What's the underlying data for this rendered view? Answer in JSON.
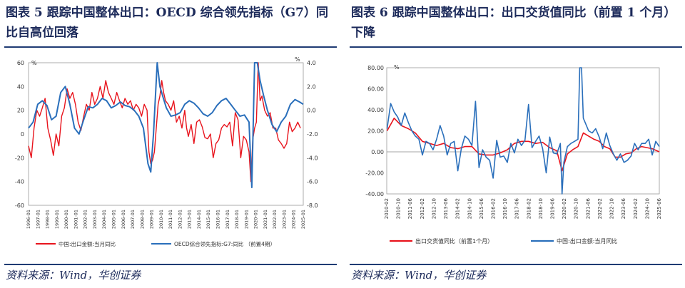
{
  "left": {
    "title": "图表 5   跟踪中国整体出口：OECD 综合领先指标（G7）同比自高位回落",
    "source": "资料来源：Wind，华创证券",
    "chart_data": {
      "type": "line",
      "y_left": {
        "unit": "%",
        "range": [
          -60,
          60
        ],
        "ticks": [
          "60",
          "40",
          "20",
          "0",
          "-20",
          "-40",
          "-60"
        ]
      },
      "y_right": {
        "unit": "%",
        "range": [
          -8.0,
          4.0
        ],
        "ticks": [
          "4.0",
          "2.0",
          "0.0",
          "-2.0",
          "-4.0",
          "-6.0",
          "-8.0"
        ]
      },
      "x_ticks": [
        "1996-01",
        "1997-01",
        "1998-01",
        "1999-01",
        "2000-01",
        "2001-01",
        "2002-01",
        "2003-01",
        "2004-01",
        "2005-01",
        "2006-01",
        "2007-01",
        "2008-01",
        "2009-01",
        "2010-01",
        "2011-01",
        "2012-01",
        "2013-01",
        "2014-01",
        "2015-01",
        "2016-01",
        "2017-01",
        "2018-01",
        "2019-01",
        "2020-01",
        "2021-01",
        "2022-01",
        "2023-01",
        "2024-01",
        "2025-01"
      ],
      "x_range": [
        1996.0,
        2025.9
      ],
      "series": [
        {
          "name": "中国:出口金额:当月同比",
          "axis": "left",
          "color": "#e8141d",
          "x": [
            1996.0,
            1996.3,
            1996.6,
            1996.9,
            1997.2,
            1997.5,
            1997.8,
            1998.1,
            1998.4,
            1998.7,
            1999.0,
            1999.3,
            1999.6,
            1999.9,
            2000.2,
            2000.5,
            2000.8,
            2001.1,
            2001.4,
            2001.7,
            2002.0,
            2002.3,
            2002.6,
            2002.9,
            2003.2,
            2003.5,
            2003.8,
            2004.1,
            2004.4,
            2004.7,
            2005.0,
            2005.3,
            2005.6,
            2005.9,
            2006.2,
            2006.5,
            2006.8,
            2007.1,
            2007.4,
            2007.7,
            2008.0,
            2008.3,
            2008.6,
            2008.9,
            2009.1,
            2009.3,
            2009.5,
            2009.7,
            2009.9,
            2010.1,
            2010.3,
            2010.5,
            2010.7,
            2010.9,
            2011.2,
            2011.5,
            2011.8,
            2012.1,
            2012.4,
            2012.7,
            2013.0,
            2013.2,
            2013.4,
            2013.7,
            2014.0,
            2014.3,
            2014.6,
            2014.9,
            2015.2,
            2015.5,
            2015.8,
            2016.1,
            2016.4,
            2016.7,
            2017.0,
            2017.3,
            2017.6,
            2017.9,
            2018.2,
            2018.5,
            2018.8,
            2019.1,
            2019.4,
            2019.7,
            2020.0,
            2020.2,
            2020.4,
            2020.6,
            2020.8,
            2021.0,
            2021.2,
            2021.4,
            2021.7,
            2022.0,
            2022.3,
            2022.6,
            2022.9,
            2023.2,
            2023.5,
            2023.8,
            2024.1,
            2024.4,
            2024.7,
            2025.0,
            2025.3,
            2025.6
          ],
          "y": [
            -10,
            -20,
            5,
            20,
            15,
            22,
            30,
            5,
            -5,
            -18,
            0,
            -10,
            15,
            22,
            38,
            30,
            35,
            25,
            10,
            3,
            15,
            25,
            20,
            35,
            25,
            30,
            40,
            30,
            45,
            35,
            30,
            25,
            35,
            28,
            22,
            30,
            25,
            28,
            20,
            25,
            22,
            15,
            25,
            20,
            -15,
            -25,
            -22,
            -15,
            5,
            25,
            32,
            45,
            35,
            28,
            25,
            20,
            28,
            10,
            15,
            5,
            20,
            5,
            -2,
            8,
            -8,
            10,
            12,
            6,
            -3,
            -4,
            0,
            -20,
            -8,
            -5,
            5,
            8,
            6,
            10,
            -10,
            18,
            12,
            -20,
            -2,
            -5,
            -15,
            -40,
            -5,
            5,
            10,
            60,
            28,
            32,
            20,
            15,
            18,
            5,
            5,
            -5,
            -8,
            -12,
            -8,
            10,
            2,
            5,
            10,
            5
          ],
          "legend_label": "中国:出口金额:当月同比"
        },
        {
          "name": "OECD综合领先指标:G7:同比（前置4期）",
          "axis": "right",
          "color": "#2a6fbb",
          "x": [
            1996.0,
            1996.5,
            1997.0,
            1997.5,
            1998.0,
            1998.5,
            1999.0,
            1999.5,
            2000.0,
            2000.5,
            2001.0,
            2001.5,
            2002.0,
            2002.5,
            2003.0,
            2003.5,
            2004.0,
            2004.5,
            2005.0,
            2005.5,
            2006.0,
            2006.5,
            2007.0,
            2007.5,
            2008.0,
            2008.5,
            2009.0,
            2009.3,
            2009.6,
            2010.0,
            2010.3,
            2010.6,
            2011.0,
            2011.5,
            2012.0,
            2012.5,
            2013.0,
            2013.5,
            2014.0,
            2014.5,
            2015.0,
            2015.5,
            2016.0,
            2016.5,
            2017.0,
            2017.5,
            2018.0,
            2018.5,
            2019.0,
            2019.5,
            2020.0,
            2020.3,
            2020.6,
            2020.9,
            2021.2,
            2021.6,
            2022.0,
            2022.5,
            2023.0,
            2023.5,
            2024.0,
            2024.5,
            2025.0,
            2025.5,
            2025.9
          ],
          "y": [
            -1.5,
            -1.0,
            0.5,
            0.8,
            0.4,
            -0.8,
            -0.5,
            1.5,
            2.0,
            0.5,
            -1.5,
            -2.0,
            -0.8,
            0.3,
            0.2,
            0.5,
            1.0,
            0.8,
            0.2,
            0.4,
            0.7,
            0.4,
            0.3,
            0.0,
            -0.5,
            -1.5,
            -4.5,
            -5.2,
            -2.0,
            4.0,
            2.0,
            1.2,
            0.2,
            -0.5,
            -0.4,
            -0.2,
            0.5,
            0.8,
            0.6,
            0.2,
            -0.3,
            -0.5,
            -0.2,
            0.4,
            0.8,
            1.0,
            0.5,
            0.0,
            -0.5,
            -0.4,
            -1.0,
            -6.5,
            4.0,
            4.0,
            2.5,
            1.2,
            0.0,
            -1.2,
            -1.8,
            -1.0,
            -0.5,
            0.5,
            0.9,
            0.7,
            0.5
          ],
          "legend_label": "OECD综合领先指标:G7:同比 （前置4期）"
        }
      ]
    }
  },
  "right": {
    "title": "图表 6   跟踪中国整体出口：出口交货值同比（前置 1 个月）下降",
    "source": "资料来源：Wind，华创证券",
    "chart_data": {
      "type": "line",
      "y_left": {
        "unit": "%",
        "range": [
          -40,
          80
        ],
        "ticks": [
          "80.00",
          "60.00",
          "40.00",
          "20.00",
          "0.00",
          "-20.00",
          "-40.00"
        ]
      },
      "x_ticks": [
        "2010-02",
        "2010-10",
        "2011-06",
        "2012-02",
        "2012-10",
        "2013-06",
        "2014-02",
        "2014-10",
        "2015-06",
        "2016-02",
        "2016-10",
        "2017-06",
        "2018-02",
        "2018-10",
        "2019-06",
        "2020-02",
        "2020-10",
        "2021-06",
        "2022-02",
        "2022-10",
        "2023-06",
        "2024-02",
        "2024-10",
        "2025-06"
      ],
      "x_range": [
        2010.08,
        2025.5
      ],
      "series": [
        {
          "name": "出口交货值同比（前置1个月）",
          "color": "#e8141d",
          "x": [
            2010.1,
            2010.5,
            2010.9,
            2011.3,
            2011.7,
            2012.1,
            2012.5,
            2012.9,
            2013.3,
            2013.7,
            2014.1,
            2014.5,
            2014.9,
            2015.3,
            2015.7,
            2016.1,
            2016.5,
            2016.9,
            2017.3,
            2017.7,
            2018.1,
            2018.5,
            2018.9,
            2019.3,
            2019.7,
            2020.0,
            2020.3,
            2020.6,
            2020.9,
            2021.2,
            2021.5,
            2021.8,
            2022.1,
            2022.4,
            2022.7,
            2023.0,
            2023.3,
            2023.6,
            2023.9,
            2024.2,
            2024.5,
            2024.8,
            2025.1,
            2025.5
          ],
          "y": [
            20,
            32,
            25,
            22,
            18,
            10,
            8,
            6,
            8,
            4,
            3,
            5,
            5,
            -2,
            -3,
            -3,
            -1,
            2,
            8,
            10,
            10,
            8,
            9,
            4,
            1,
            -18,
            -2,
            2,
            5,
            18,
            15,
            12,
            10,
            5,
            3,
            -5,
            -5,
            -2,
            -1,
            3,
            5,
            4,
            3,
            0
          ]
        },
        {
          "name": "中国:出口金额:当月同比",
          "color": "#2a6fbb",
          "x": [
            2010.1,
            2010.3,
            2010.5,
            2010.7,
            2010.9,
            2011.1,
            2011.3,
            2011.5,
            2011.7,
            2011.9,
            2012.1,
            2012.3,
            2012.5,
            2012.7,
            2012.9,
            2013.1,
            2013.3,
            2013.5,
            2013.7,
            2013.9,
            2014.1,
            2014.3,
            2014.5,
            2014.7,
            2014.9,
            2015.1,
            2015.3,
            2015.5,
            2015.7,
            2015.9,
            2016.1,
            2016.3,
            2016.5,
            2016.7,
            2016.9,
            2017.1,
            2017.3,
            2017.5,
            2017.7,
            2017.9,
            2018.1,
            2018.3,
            2018.5,
            2018.7,
            2018.9,
            2019.1,
            2019.3,
            2019.5,
            2019.7,
            2019.9,
            2020.0,
            2020.1,
            2020.3,
            2020.5,
            2020.7,
            2020.9,
            2021.0,
            2021.1,
            2021.2,
            2021.3,
            2021.5,
            2021.7,
            2021.9,
            2022.1,
            2022.3,
            2022.5,
            2022.7,
            2022.9,
            2023.1,
            2023.3,
            2023.5,
            2023.7,
            2023.9,
            2024.1,
            2024.3,
            2024.5,
            2024.7,
            2024.9,
            2025.1,
            2025.3,
            2025.5
          ],
          "y": [
            22,
            46,
            38,
            33,
            25,
            37,
            28,
            20,
            15,
            12,
            -3,
            10,
            8,
            2,
            12,
            25,
            15,
            -3,
            8,
            10,
            -18,
            3,
            15,
            12,
            6,
            48,
            -15,
            2,
            -5,
            -8,
            -25,
            11,
            -5,
            -4,
            -10,
            8,
            -1,
            12,
            6,
            11,
            45,
            4,
            10,
            15,
            3,
            -20,
            14,
            -1,
            -2,
            8,
            -40,
            -10,
            5,
            8,
            10,
            12,
            80,
            80,
            32,
            28,
            20,
            18,
            22,
            14,
            3,
            18,
            6,
            -2,
            -8,
            -2,
            -10,
            -8,
            -4,
            8,
            2,
            8,
            8,
            12,
            -3,
            10,
            5
          ]
        }
      ]
    }
  }
}
